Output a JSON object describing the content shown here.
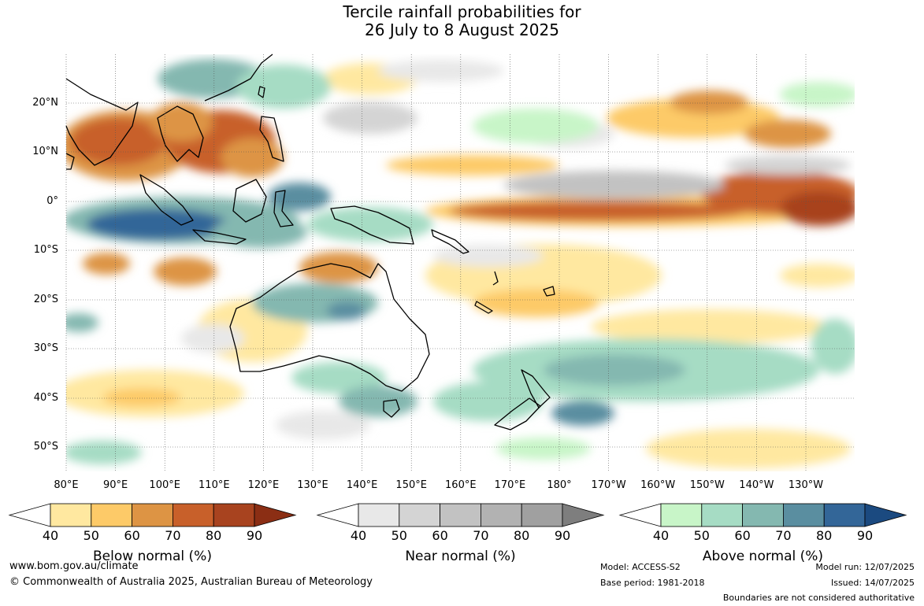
{
  "title_line1": "Tercile rainfall probabilities for",
  "title_line2": "26 July to 8 August 2025",
  "lat_labels": [
    "20°N",
    "10°N",
    "0°",
    "10°S",
    "20°S",
    "30°S",
    "40°S",
    "50°S"
  ],
  "lon_labels": [
    "80°E",
    "90°E",
    "100°E",
    "110°E",
    "120°E",
    "130°E",
    "140°E",
    "150°E",
    "160°E",
    "170°E",
    "180°",
    "170°W",
    "160°W",
    "150°W",
    "140°W",
    "130°W"
  ],
  "colorbars": [
    {
      "title": "Below normal (%)",
      "ticks": [
        "40",
        "50",
        "60",
        "70",
        "80",
        "90"
      ],
      "colors": [
        "#ffffff",
        "#ffe8a0",
        "#fdca68",
        "#dd9444",
        "#c8602a",
        "#a8431f",
        "#8b2e14"
      ]
    },
    {
      "title": "Near normal (%)",
      "ticks": [
        "40",
        "50",
        "60",
        "70",
        "80",
        "90"
      ],
      "colors": [
        "#ffffff",
        "#e8e8e8",
        "#d4d4d4",
        "#c2c2c2",
        "#b2b2b2",
        "#a0a0a0",
        "#7e7e7e"
      ]
    },
    {
      "title": "Above normal (%)",
      "ticks": [
        "40",
        "50",
        "60",
        "70",
        "80",
        "90"
      ],
      "colors": [
        "#ffffff",
        "#c8f5c8",
        "#a6dcc4",
        "#84b8b0",
        "#5a8ea0",
        "#336698",
        "#1b4a80"
      ]
    }
  ],
  "footer": {
    "website": "www.bom.gov.au/climate",
    "copyright": "© Commonwealth of Australia 2025, Australian Bureau of Meteorology",
    "model": "Model: ACCESS-S2",
    "base_period": "Base period: 1981-2018",
    "model_run": "Model run: 12/07/2025",
    "issued": "Issued: 14/07/2025",
    "boundaries_note": "Boundaries are not considered authoritative"
  }
}
